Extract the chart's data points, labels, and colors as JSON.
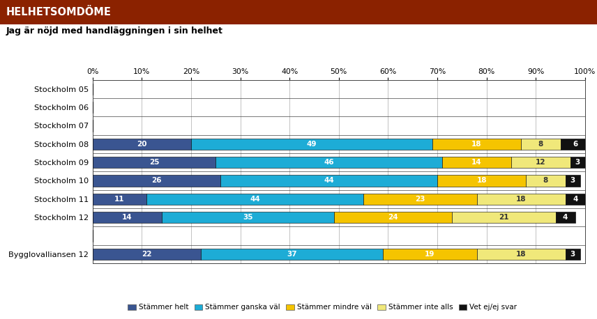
{
  "title": "HELHETSOMDÖME",
  "subtitle": "Jag är nöjd med handläggningen i sin helhet",
  "categories": [
    "Stockholm 05",
    "Stockholm 06",
    "Stockholm 07",
    "Stockholm 08",
    "Stockholm 09",
    "Stockholm 10",
    "Stockholm 11",
    "Stockholm 12",
    "",
    "Bygglovalliansen 12"
  ],
  "series": {
    "Stämmer helt": [
      0,
      0,
      0,
      20,
      25,
      26,
      11,
      14,
      0,
      22
    ],
    "Stämmer ganska väl": [
      0,
      0,
      0,
      49,
      46,
      44,
      44,
      35,
      0,
      37
    ],
    "Stämmer mindre väl": [
      0,
      0,
      0,
      18,
      14,
      18,
      23,
      24,
      0,
      19
    ],
    "Stämmer inte alls": [
      0,
      0,
      0,
      8,
      12,
      8,
      18,
      21,
      0,
      18
    ],
    "Vet ej/ej svar": [
      0,
      0,
      0,
      6,
      3,
      3,
      4,
      4,
      0,
      3
    ]
  },
  "colors": {
    "Stämmer helt": "#3a5591",
    "Stämmer ganska väl": "#1dacd6",
    "Stämmer mindre väl": "#f5c400",
    "Stämmer inte alls": "#f0e87a",
    "Vet ej/ej svar": "#111111"
  },
  "text_colors": {
    "Stämmer helt": "#ffffff",
    "Stämmer ganska väl": "#ffffff",
    "Stämmer mindre väl": "#ffffff",
    "Stämmer inte alls": "#333333",
    "Vet ej/ej svar": "#ffffff"
  },
  "header_bg": "#8b2200",
  "header_text": "#ffffff",
  "xlim": [
    0,
    100
  ],
  "xticks": [
    0,
    10,
    20,
    30,
    40,
    50,
    60,
    70,
    80,
    90,
    100
  ]
}
